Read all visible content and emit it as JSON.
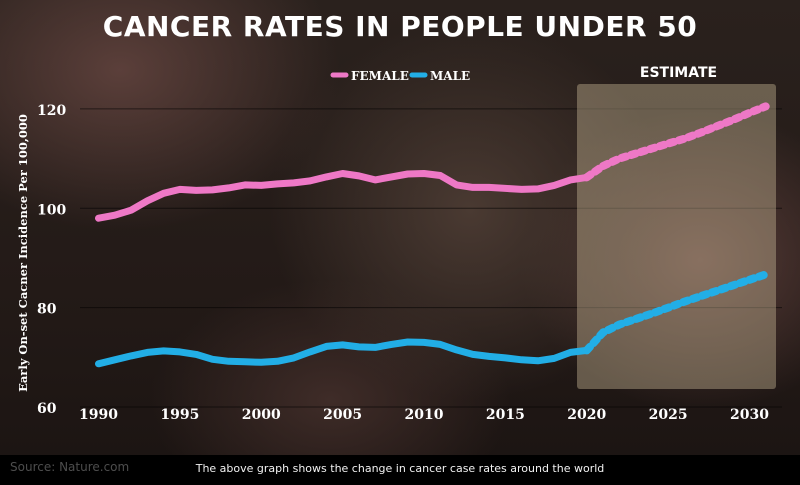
{
  "colors": {
    "female": "#ee78c6",
    "male": "#22aee6",
    "estimate_band": "#c8b896",
    "text": "#ffffff"
  },
  "chart_data": {
    "type": "line",
    "title": "CANCER RATES IN PEOPLE UNDER 50",
    "ylabel": "Early On-set Cacner Incidence Per 100,000",
    "xlabel": "",
    "xlim": [
      1988,
      2032
    ],
    "ylim": [
      58,
      125
    ],
    "x_ticks": [
      1990,
      1995,
      2000,
      2005,
      2010,
      2015,
      2020,
      2025,
      2030
    ],
    "y_ticks": [
      60,
      80,
      100,
      120
    ],
    "grid": true,
    "legend_placement": "top-center",
    "estimate_label": "ESTIMATE",
    "estimate_range": [
      2020,
      2032
    ],
    "series": [
      {
        "name": "FEMALE",
        "color": "#ee78c6",
        "x": [
          1990,
          1991,
          1992,
          1993,
          1994,
          1995,
          1996,
          1997,
          1998,
          1999,
          2000,
          2001,
          2002,
          2003,
          2004,
          2005,
          2006,
          2007,
          2008,
          2009,
          2010,
          2011,
          2012,
          2013,
          2014,
          2015,
          2016,
          2017,
          2018,
          2019,
          2020
        ],
        "y": [
          98,
          98.6,
          99.6,
          101.5,
          103,
          103.8,
          103.6,
          103.7,
          104.1,
          104.7,
          104.6,
          104.9,
          105.1,
          105.5,
          106.3,
          107,
          106.5,
          105.7,
          106.3,
          106.9,
          107,
          106.6,
          104.7,
          104.2,
          104.2,
          104,
          103.8,
          103.9,
          104.6,
          105.7,
          106.2
        ],
        "estimate_x": [
          2020,
          2021,
          2022,
          2023,
          2024,
          2025,
          2026,
          2027,
          2028,
          2029,
          2030,
          2031
        ],
        "estimate_y": [
          106.2,
          108.5,
          110,
          111,
          112,
          113,
          114,
          115.2,
          116.5,
          117.8,
          119.2,
          120.5
        ]
      },
      {
        "name": "MALE",
        "color": "#22aee6",
        "x": [
          1990,
          1991,
          1992,
          1993,
          1994,
          1995,
          1996,
          1997,
          1998,
          1999,
          2000,
          2001,
          2002,
          2003,
          2004,
          2005,
          2006,
          2007,
          2008,
          2009,
          2010,
          2011,
          2012,
          2013,
          2014,
          2015,
          2016,
          2017,
          2018,
          2019,
          2020
        ],
        "y": [
          68.7,
          69.5,
          70.3,
          71,
          71.3,
          71.1,
          70.6,
          69.6,
          69.2,
          69.1,
          69,
          69.2,
          69.9,
          71.1,
          72.2,
          72.5,
          72.1,
          72,
          72.6,
          73.1,
          73,
          72.6,
          71.5,
          70.6,
          70.2,
          69.9,
          69.5,
          69.3,
          69.8,
          71,
          71.4
        ],
        "estimate_x": [
          2020,
          2021,
          2022,
          2023,
          2024,
          2025,
          2026,
          2027,
          2028,
          2029,
          2030,
          2031
        ],
        "estimate_y": [
          71.4,
          75,
          76.6,
          77.7,
          78.8,
          80,
          81.2,
          82.3,
          83.4,
          84.5,
          85.6,
          86.7
        ]
      }
    ]
  },
  "footer": {
    "source": "Source: Nature.com",
    "caption": "The above graph shows the change in cancer case rates around the world"
  }
}
